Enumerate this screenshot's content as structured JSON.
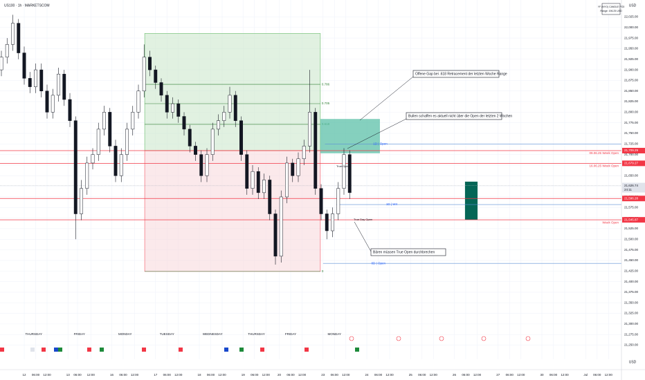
{
  "header": {
    "symbol": "US100 · 1h · MARKETSCOM",
    "currency": "USD",
    "indicator_title": "YF (NYO) CANDLE PO3",
    "indicator_range": "Range: 196.25 USD"
  },
  "chart_data": {
    "type": "candlestick",
    "xlim": [
      -12.73,
      313.82
    ],
    "ylim": [
      21216.6,
      22064.9
    ],
    "grid": true,
    "x": [
      -12,
      -9,
      -6,
      -3,
      0,
      3,
      6,
      9,
      12,
      15,
      18,
      21,
      24,
      27,
      30,
      33,
      36,
      39,
      42,
      45,
      48,
      51,
      54,
      57,
      60,
      63,
      66,
      69,
      72,
      75,
      78,
      81,
      84,
      87,
      90,
      93,
      96,
      99,
      102,
      105,
      108,
      111,
      114,
      117,
      120,
      123,
      126,
      129,
      132,
      135,
      138,
      141,
      144,
      147,
      150,
      153,
      156,
      159,
      162,
      165,
      168,
      171
    ],
    "open": [
      21900,
      21930,
      21960,
      22010,
      21940,
      21880,
      21860,
      21900,
      21850,
      21800,
      21840,
      21890,
      21830,
      21780,
      21560,
      21620,
      21680,
      21700,
      21760,
      21800,
      21720,
      21650,
      21700,
      21760,
      21800,
      21850,
      21930,
      21900,
      21870,
      21840,
      21800,
      21820,
      21790,
      21760,
      21720,
      21700,
      21650,
      21700,
      21760,
      21780,
      21800,
      21840,
      21780,
      21700,
      21620,
      21660,
      21610,
      21640,
      21560,
      21460,
      21600,
      21680,
      21650,
      21690,
      21720,
      21800,
      21620,
      21560,
      21520,
      21560,
      21620,
      21700
    ],
    "high": [
      21945,
      21975,
      22030,
      22020,
      21955,
      21895,
      21915,
      21915,
      21865,
      21855,
      21905,
      21900,
      21845,
      21790,
      21640,
      21695,
      21715,
      21775,
      21815,
      21810,
      21735,
      21715,
      21775,
      21815,
      21865,
      21960,
      21945,
      21910,
      21880,
      21850,
      21835,
      21830,
      21800,
      21770,
      21730,
      21710,
      21715,
      21775,
      21795,
      21815,
      21860,
      21850,
      21790,
      21710,
      21675,
      21670,
      21655,
      21650,
      21570,
      21615,
      21695,
      21690,
      21705,
      21735,
      21900,
      21810,
      21630,
      21570,
      21575,
      21635,
      21715,
      21710
    ],
    "low": [
      21885,
      21915,
      21945,
      21925,
      21865,
      21845,
      21845,
      21835,
      21785,
      21785,
      21825,
      21815,
      21765,
      21500,
      21545,
      21605,
      21665,
      21685,
      21745,
      21705,
      21635,
      21635,
      21685,
      21745,
      21785,
      21835,
      21885,
      21855,
      21825,
      21785,
      21785,
      21775,
      21745,
      21705,
      21685,
      21635,
      21635,
      21685,
      21745,
      21765,
      21785,
      21765,
      21685,
      21605,
      21605,
      21595,
      21595,
      21545,
      21440,
      21445,
      21585,
      21635,
      21635,
      21675,
      21705,
      21605,
      21545,
      21500,
      21505,
      21545,
      21605,
      21595
    ],
    "close": [
      21930,
      21960,
      22010,
      21940,
      21880,
      21860,
      21900,
      21850,
      21800,
      21840,
      21890,
      21830,
      21780,
      21560,
      21620,
      21680,
      21700,
      21760,
      21800,
      21720,
      21650,
      21700,
      21760,
      21800,
      21850,
      21930,
      21900,
      21870,
      21840,
      21800,
      21820,
      21790,
      21760,
      21720,
      21700,
      21650,
      21700,
      21760,
      21780,
      21800,
      21840,
      21780,
      21700,
      21620,
      21660,
      21610,
      21640,
      21560,
      21460,
      21600,
      21680,
      21650,
      21690,
      21720,
      21800,
      21620,
      21560,
      21520,
      21560,
      21620,
      21700,
      21610
    ],
    "yticks": [
      {
        "value": 21250,
        "label": "21,250.00"
      },
      {
        "value": 21275,
        "label": "21,275.00"
      },
      {
        "value": 21300,
        "label": "21,300.00"
      },
      {
        "value": 21325,
        "label": "21,325.00"
      },
      {
        "value": 21350,
        "label": "21,350.00"
      },
      {
        "value": 21375,
        "label": "21,375.00"
      },
      {
        "value": 21400,
        "label": "21,400.00"
      },
      {
        "value": 21425,
        "label": "21,425.00"
      },
      {
        "value": 21450,
        "label": "21,450.00"
      },
      {
        "value": 21475,
        "label": "21,475.00"
      },
      {
        "value": 21500,
        "label": "21,500.00"
      },
      {
        "value": 21525,
        "label": "21,525.00"
      },
      {
        "value": 21550,
        "label": "21,550.00"
      },
      {
        "value": 21575,
        "label": "21,575.00"
      },
      {
        "value": 21600,
        "label": "21,600.00"
      },
      {
        "value": 21625,
        "label": "21,625.00"
      },
      {
        "value": 21650,
        "label": "21,650.00"
      },
      {
        "value": 21675,
        "label": "21,675.00"
      },
      {
        "value": 21700,
        "label": "21,700.00"
      },
      {
        "value": 21725,
        "label": "21,725.00"
      },
      {
        "value": 21750,
        "label": "21,750.00"
      },
      {
        "value": 21775,
        "label": "21,775.00"
      },
      {
        "value": 21800,
        "label": "21,800.00"
      },
      {
        "value": 21825,
        "label": "21,825.00"
      },
      {
        "value": 21850,
        "label": "21,850.00"
      },
      {
        "value": 21875,
        "label": "21,875.00"
      },
      {
        "value": 21900,
        "label": "21,900.00"
      },
      {
        "value": 21925,
        "label": "21,925.00"
      },
      {
        "value": 21950,
        "label": "21,950.00"
      },
      {
        "value": 21975,
        "label": "21,975.00"
      },
      {
        "value": 22000,
        "label": "22,000.00"
      },
      {
        "value": 22025,
        "label": "22,025.00"
      }
    ],
    "xticks": [
      {
        "value": 0,
        "label": "12"
      },
      {
        "value": 6,
        "label": "06:00"
      },
      {
        "value": 12,
        "label": "12:00"
      },
      {
        "value": 23,
        "label": "13"
      },
      {
        "value": 28,
        "label": "06:00"
      },
      {
        "value": 35,
        "label": "12:00"
      },
      {
        "value": 46,
        "label": "16"
      },
      {
        "value": 52,
        "label": "06:00"
      },
      {
        "value": 58,
        "label": "12:00"
      },
      {
        "value": 69,
        "label": "17"
      },
      {
        "value": 75,
        "label": "06:00"
      },
      {
        "value": 81,
        "label": "12:00"
      },
      {
        "value": 92,
        "label": "18"
      },
      {
        "value": 98,
        "label": "06:00"
      },
      {
        "value": 104,
        "label": "12:00"
      },
      {
        "value": 115,
        "label": "19"
      },
      {
        "value": 121,
        "label": "06:00"
      },
      {
        "value": 127,
        "label": "12:00"
      },
      {
        "value": 134,
        "label": "20"
      },
      {
        "value": 140,
        "label": "06:00"
      },
      {
        "value": 146,
        "label": "12:00"
      },
      {
        "value": 157,
        "label": "23"
      },
      {
        "value": 163,
        "label": "06:00"
      },
      {
        "value": 169,
        "label": "12:00"
      },
      {
        "value": 180,
        "label": "24"
      },
      {
        "value": 186,
        "label": "06:00"
      },
      {
        "value": 192,
        "label": "12:00"
      },
      {
        "value": 203,
        "label": "25"
      },
      {
        "value": 209,
        "label": "06:00"
      },
      {
        "value": 215,
        "label": "12:00"
      },
      {
        "value": 226,
        "label": "26"
      },
      {
        "value": 232,
        "label": "06:00"
      },
      {
        "value": 238,
        "label": "12:00"
      },
      {
        "value": 249,
        "label": "27"
      },
      {
        "value": 255,
        "label": "06:00"
      },
      {
        "value": 261,
        "label": "12:00"
      },
      {
        "value": 272,
        "label": "30"
      },
      {
        "value": 278,
        "label": "06:00"
      },
      {
        "value": 284,
        "label": "12:00"
      },
      {
        "value": 295,
        "label": "Jul"
      },
      {
        "value": 301,
        "label": "06:00"
      },
      {
        "value": 307,
        "label": "12:00"
      }
    ],
    "sessions": [
      {
        "name": "THURSDAY",
        "x": 5
      },
      {
        "name": "FRIDAY",
        "x": 29
      },
      {
        "name": "MONDAY",
        "x": 53
      },
      {
        "name": "TUESDAY",
        "x": 75
      },
      {
        "name": "WEDNESDAY",
        "x": 99
      },
      {
        "name": "THURSDAY",
        "x": 122
      },
      {
        "name": "FRIDAY",
        "x": 140
      },
      {
        "name": "MONDAY",
        "x": 163
      }
    ],
    "fib": {
      "x0": 63.3,
      "x1": 155.6,
      "high": 21986,
      "low": 21424,
      "mid": 21709.29,
      "levels": [
        0.786,
        0.705,
        0.618,
        0
      ]
    },
    "zones": [
      {
        "x0": 155.6,
        "x1": 186.9,
        "top": 21784,
        "bottom": 21703,
        "color": "#5cc0a8"
      },
      {
        "x0": 231.6,
        "x1": 238.2,
        "top": 21636,
        "bottom": 21546,
        "color": "#056656"
      }
    ],
    "price_lines": [
      {
        "value": 21709.29,
        "label": "21,709.29",
        "name": "09.06.25 Week Open",
        "color": "#f23645"
      },
      {
        "value": 21679.27,
        "label": "21,679.27",
        "name": "16.06.25 Week Open",
        "color": "#f23645"
      },
      {
        "value": 21596.28,
        "label": "21,596.28",
        "color": "#f23645"
      },
      {
        "value": 21545.87,
        "label": "21,545.87",
        "name": "Week Open",
        "color": "#f23645"
      }
    ],
    "last_price": {
      "value": 21626.74,
      "label": "21,626.74",
      "countdown": "24:11"
    },
    "levels": [
      {
        "name": "1D | Open",
        "value": 21725,
        "x0": 158
      },
      {
        "name": "1D | W4",
        "value": 21582,
        "x0": 164
      },
      {
        "name": "8D | Open",
        "value": 21443,
        "x0": 157
      }
    ],
    "labels": [
      "True Open",
      "True Day Open"
    ]
  },
  "annotations": [
    "Offene Gap bei .618 Retracement der letzten Woche Range",
    "Bullen schaffen es aktuell nicht über die Open der letzten 2 Wochen",
    "Bären müssen True Open durchbrechen"
  ]
}
